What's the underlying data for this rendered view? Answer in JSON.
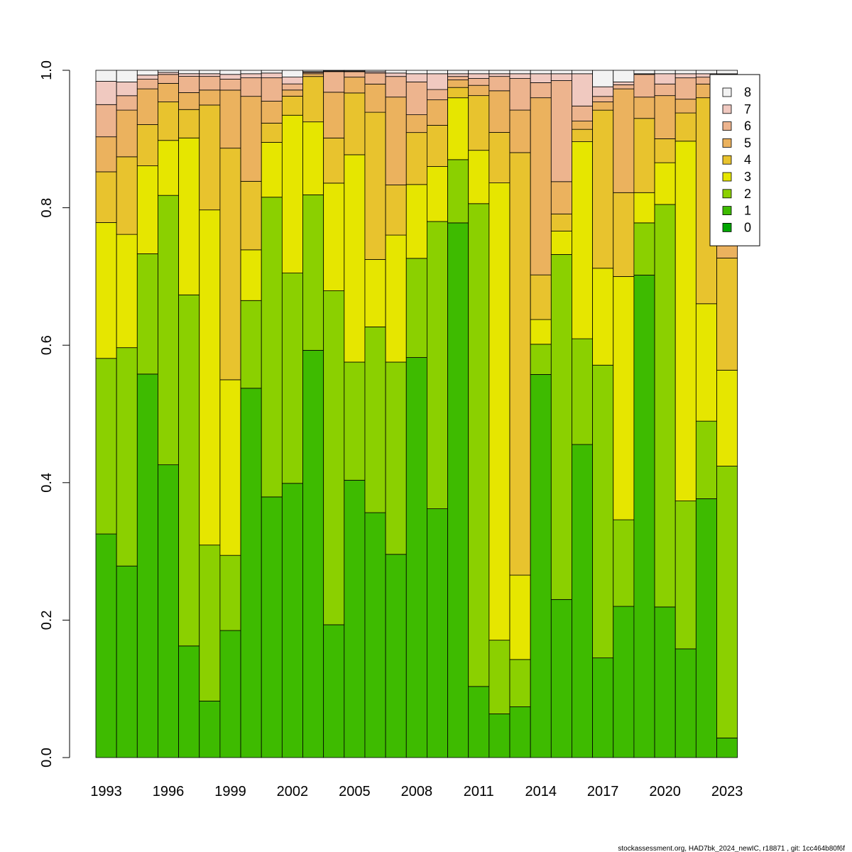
{
  "chart_data": {
    "type": "bar",
    "stacked": true,
    "years": [
      1993,
      1994,
      1995,
      1996,
      1997,
      1998,
      1999,
      2000,
      2001,
      2002,
      2003,
      2004,
      2005,
      2006,
      2007,
      2008,
      2009,
      2010,
      2011,
      2012,
      2013,
      2014,
      2015,
      2016,
      2017,
      2018,
      2019,
      2020,
      2021,
      2022,
      2023
    ],
    "x_tick_labels": [
      "1993",
      "1996",
      "1999",
      "2002",
      "2005",
      "2008",
      "2011",
      "2014",
      "2017",
      "2020",
      "2023"
    ],
    "ylim": [
      0,
      1
    ],
    "y_tick_labels": [
      "0.0",
      "0.2",
      "0.4",
      "0.6",
      "0.8",
      "1.0"
    ],
    "grid": false,
    "legend_position": "top-right",
    "series": [
      {
        "name": "0",
        "color": "#00A600",
        "values": [
          0,
          0,
          0,
          0,
          0,
          0,
          0,
          0,
          0,
          0,
          0,
          0,
          0,
          0,
          0,
          0,
          0,
          0,
          0,
          0,
          0,
          0,
          0,
          0,
          0,
          0,
          0,
          0,
          0,
          0,
          0
        ]
      },
      {
        "name": "1",
        "color": "#3EBB00",
        "values": [
          0.326,
          0.279,
          0.558,
          0.426,
          0.165,
          0.083,
          0.186,
          0.539,
          0.38,
          0.403,
          0.592,
          0.206,
          0.404,
          0.356,
          0.296,
          0.585,
          0.362,
          0.778,
          0.104,
          0.064,
          0.074,
          0.558,
          0.23,
          0.456,
          0.145,
          0.22,
          0.702,
          0.22,
          0.158,
          0.377,
          0.028
        ]
      },
      {
        "name": "2",
        "color": "#8BD000",
        "values": [
          0.256,
          0.318,
          0.175,
          0.392,
          0.519,
          0.229,
          0.11,
          0.128,
          0.437,
          0.309,
          0.226,
          0.518,
          0.172,
          0.27,
          0.28,
          0.145,
          0.418,
          0.092,
          0.706,
          0.108,
          0.069,
          0.044,
          0.502,
          0.154,
          0.426,
          0.126,
          0.076,
          0.588,
          0.215,
          0.113,
          0.388
        ]
      },
      {
        "name": "3",
        "color": "#E6E600",
        "values": [
          0.198,
          0.165,
          0.128,
          0.08,
          0.232,
          0.492,
          0.257,
          0.074,
          0.08,
          0.232,
          0.106,
          0.167,
          0.302,
          0.098,
          0.185,
          0.108,
          0.08,
          0.09,
          0.078,
          0.67,
          0.123,
          0.036,
          0.034,
          0.287,
          0.141,
          0.354,
          0.044,
          0.061,
          0.523,
          0.171,
          0.137
        ]
      },
      {
        "name": "4",
        "color": "#E8C32E",
        "values": [
          0.074,
          0.113,
          0.06,
          0.056,
          0.042,
          0.154,
          0.339,
          0.1,
          0.028,
          0.028,
          0.066,
          0.07,
          0.09,
          0.214,
          0.073,
          0.076,
          0.06,
          0.015,
          0.08,
          0.074,
          0.616,
          0.065,
          0.025,
          0.018,
          0.23,
          0.122,
          0.108,
          0.035,
          0.041,
          0.3,
          0.16
        ]
      },
      {
        "name": "5",
        "color": "#EBB25E",
        "values": [
          0.051,
          0.068,
          0.052,
          0.027,
          0.025,
          0.022,
          0.085,
          0.124,
          0.032,
          0.009,
          0.004,
          0.071,
          0.023,
          0.041,
          0.128,
          0.026,
          0.037,
          0.011,
          0.015,
          0.061,
          0.062,
          0.258,
          0.047,
          0.012,
          0.012,
          0.151,
          0.031,
          0.063,
          0.02,
          0.02,
          0.2
        ]
      },
      {
        "name": "6",
        "color": "#EDB48E",
        "values": [
          0.047,
          0.021,
          0.014,
          0.013,
          0.024,
          0.02,
          0.016,
          0.027,
          0.034,
          0.009,
          0.002,
          0.032,
          0.008,
          0.016,
          0.03,
          0.048,
          0.015,
          0.005,
          0.01,
          0.021,
          0.046,
          0.022,
          0.147,
          0.022,
          0.008,
          0.006,
          0.033,
          0.017,
          0.031,
          0.01,
          0.053
        ]
      },
      {
        "name": "7",
        "color": "#F0C9C0",
        "values": [
          0.034,
          0.02,
          0.006,
          0.003,
          0.004,
          0.004,
          0.007,
          0.006,
          0.007,
          0.01,
          0.001,
          0.001,
          0.001,
          0.002,
          0.005,
          0.012,
          0.023,
          0.004,
          0.007,
          0.004,
          0.007,
          0.013,
          0.01,
          0.047,
          0.014,
          0.004,
          0.001,
          0.015,
          0.006,
          0.005,
          0.01
        ]
      },
      {
        "name": "8",
        "color": "#F2F2F2",
        "values": [
          0.016,
          0.017,
          0.007,
          0.003,
          0.005,
          0.005,
          0.006,
          0.005,
          0.004,
          0.01,
          0.002,
          0.001,
          0.001,
          0.002,
          0.004,
          0.005,
          0.005,
          0.005,
          0.005,
          0.005,
          0.005,
          0.005,
          0.005,
          0.005,
          0.024,
          0.017,
          0.005,
          0.005,
          0.005,
          0.005,
          0.005
        ]
      }
    ]
  },
  "footer": {
    "text": "stockassessment.org, HAD7bk_2024_newIC, r18871 , git: 1cc464b80f6f"
  }
}
